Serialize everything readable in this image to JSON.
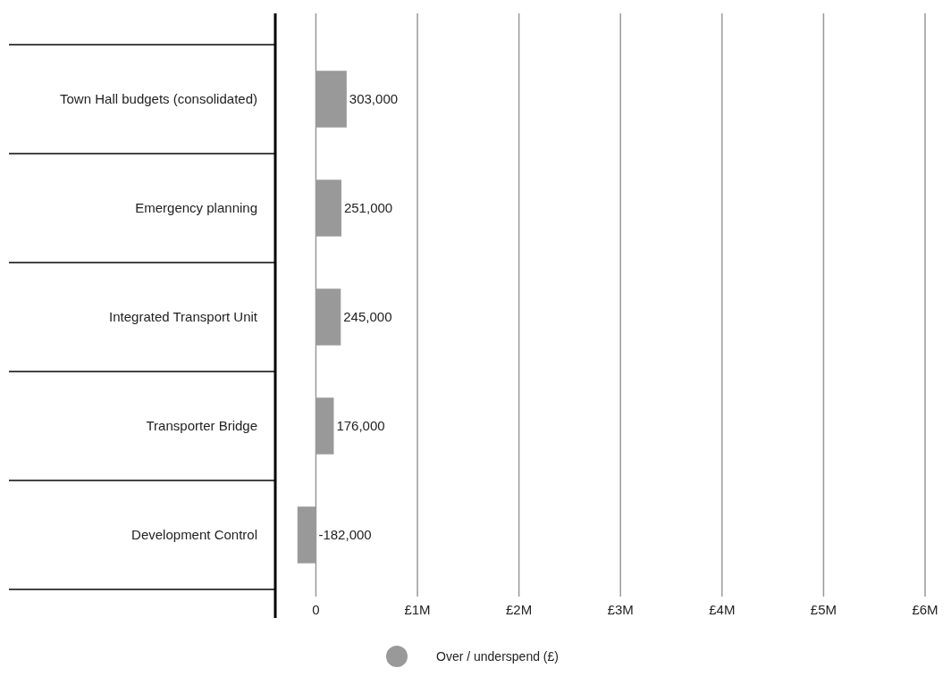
{
  "chart_data": {
    "type": "bar",
    "orientation": "horizontal",
    "categories": [
      "Town Hall budgets (consolidated)",
      "Emergency planning",
      "Integrated Transport Unit",
      "Transporter Bridge",
      "Development Control"
    ],
    "series": [
      {
        "name": "Over / underspend (£)",
        "color": "#999999",
        "values": [
          303000,
          251000,
          245000,
          176000,
          -182000
        ],
        "value_labels": [
          "303,000",
          "251,000",
          "245,000",
          "176,000",
          "-182,000"
        ]
      }
    ],
    "xlim": [
      -400000,
      6000000
    ],
    "xticks": [
      0,
      {
        "value": 1000000,
        "label": "£1M"
      },
      {
        "value": 2000000,
        "label": "£2M"
      },
      {
        "value": 3000000,
        "label": "£3M"
      },
      {
        "value": 4000000,
        "label": "£4M"
      },
      {
        "value": 5000000,
        "label": "£5M"
      },
      {
        "value": 6000000,
        "label": "£6M"
      }
    ],
    "grid": "x",
    "legend": "bottom"
  }
}
